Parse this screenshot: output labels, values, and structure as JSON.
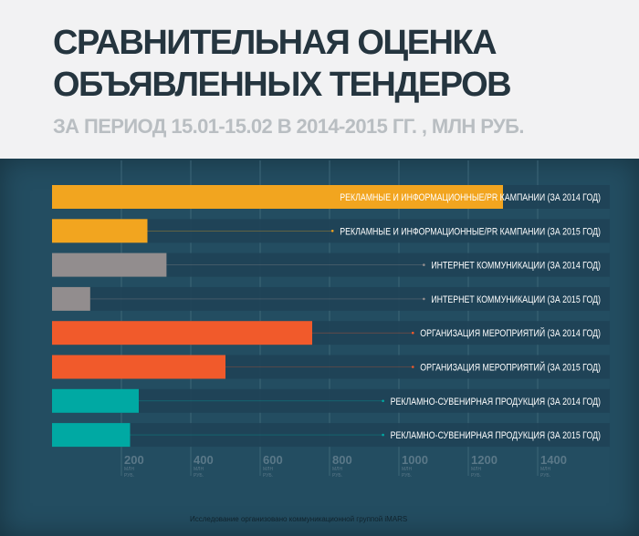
{
  "title_line1": "СРАВНИТЕЛЬНАЯ ОЦЕНКА",
  "title_line2": "ОБЪЯВЛЕННЫХ ТЕНДЕРОВ",
  "subtitle": "ЗА ПЕРИОД 15.01-15.02 В 2014-2015 ГГ. , МЛН РУБ.",
  "footer": "Исследование организовано коммуникационной группой iMARS",
  "chart_data": {
    "type": "bar",
    "orientation": "horizontal",
    "title": "СРАВНИТЕЛЬНАЯ ОЦЕНКА ОБЪЯВЛЕННЫХ ТЕНДЕРОВ",
    "xlabel": "млн руб.",
    "xlim": [
      0,
      1400
    ],
    "grid": true,
    "ticks": [
      {
        "value": 200,
        "label": "200",
        "unit1": "МЛН",
        "unit2": "РУБ."
      },
      {
        "value": 400,
        "label": "400",
        "unit1": "МЛН",
        "unit2": "РУБ."
      },
      {
        "value": 600,
        "label": "600",
        "unit1": "МЛН",
        "unit2": "РУБ."
      },
      {
        "value": 800,
        "label": "800",
        "unit1": "МЛН",
        "unit2": "РУБ."
      },
      {
        "value": 1000,
        "label": "1000",
        "unit1": "МЛН",
        "unit2": "РУБ."
      },
      {
        "value": 1200,
        "label": "1200",
        "unit1": "МЛН",
        "unit2": "РУБ."
      },
      {
        "value": 1400,
        "label": "1400",
        "unit1": "МЛН",
        "unit2": "РУБ."
      }
    ],
    "bars": [
      {
        "label": "РЕКЛАМНЫЕ И ИНФОРМАЦИОННЫЕ/PR КАМПАНИИ (ЗА 2014 ГОД)",
        "value": 1300,
        "color": "#f2a51f"
      },
      {
        "label": "РЕКЛАМНЫЕ И ИНФОРМАЦИОННЫЕ/PR КАМПАНИИ  (ЗА 2015 ГОД)",
        "value": 275,
        "color": "#f2a51f"
      },
      {
        "label": "ИНТЕРНЕТ КОММУНИКАЦИИ  (ЗА 2014 ГОД)",
        "value": 330,
        "color": "#928d8e"
      },
      {
        "label": "ИНТЕРНЕТ КОММУНИКАЦИИ  (ЗА 2015 ГОД)",
        "value": 110,
        "color": "#928d8e"
      },
      {
        "label": "ОРГАНИЗАЦИЯ МЕРОПРИЯТИЙ  (ЗА 2014 ГОД)",
        "value": 750,
        "color": "#f15a2b"
      },
      {
        "label": "ОРГАНИЗАЦИЯ МЕРОПРИЯТИЙ  (ЗА 2015 ГОД)",
        "value": 500,
        "color": "#f15a2b"
      },
      {
        "label": "РЕКЛАМНО-СУВЕНИРНАЯ ПРОДУКЦИЯ  (ЗА 2014 ГОД)",
        "value": 250,
        "color": "#00a9a3"
      },
      {
        "label": "РЕКЛАМНО-СУВЕНИРНАЯ ПРОДУКЦИЯ  (ЗА 2015 ГОД)",
        "value": 225,
        "color": "#00a9a3"
      }
    ]
  }
}
